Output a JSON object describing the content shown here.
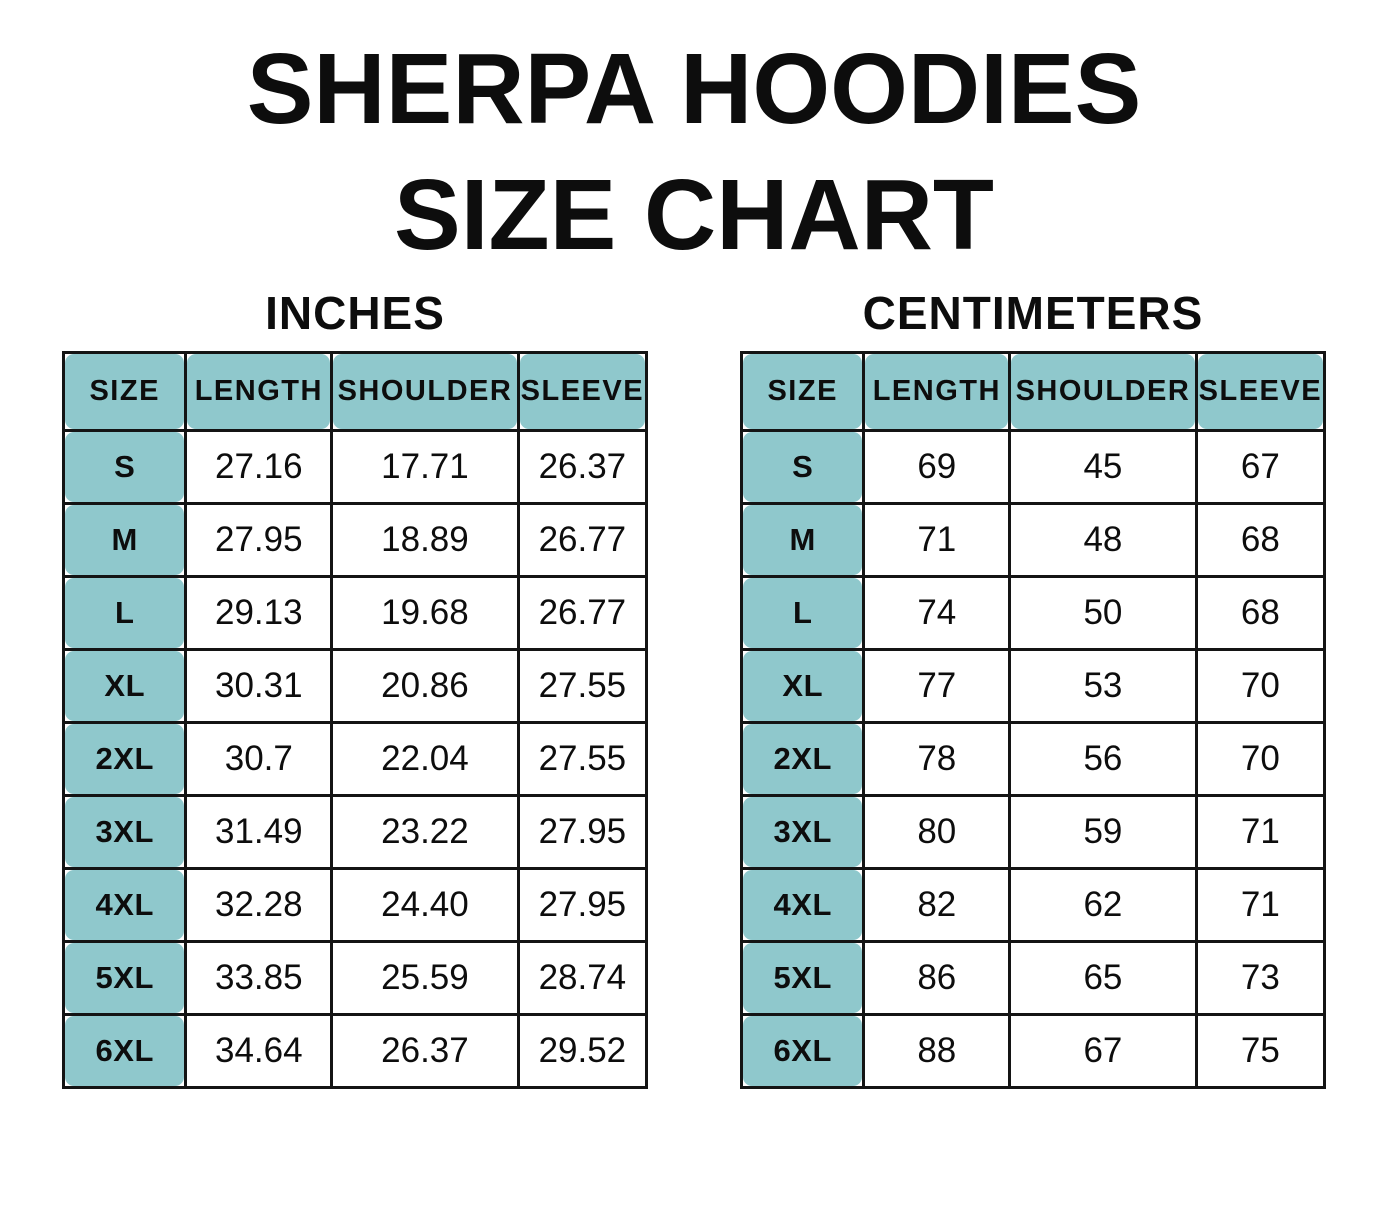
{
  "title": {
    "line1": "SHERPA HOODIES",
    "line2": "SIZE CHART"
  },
  "colors": {
    "header_fill": "#8FC8CC",
    "border": "#141414",
    "text": "#0D0D0D",
    "background": "#FFFFFF"
  },
  "tables": [
    {
      "id": "inches",
      "subtitle": "INCHES",
      "columns": [
        "SIZE",
        "LENGTH",
        "SHOULDER",
        "SLEEVE"
      ],
      "rows": [
        {
          "size": "S",
          "values": [
            "27.16",
            "17.71",
            "26.37"
          ]
        },
        {
          "size": "M",
          "values": [
            "27.95",
            "18.89",
            "26.77"
          ]
        },
        {
          "size": "L",
          "values": [
            "29.13",
            "19.68",
            "26.77"
          ]
        },
        {
          "size": "XL",
          "values": [
            "30.31",
            "20.86",
            "27.55"
          ]
        },
        {
          "size": "2XL",
          "values": [
            "30.7",
            "22.04",
            "27.55"
          ]
        },
        {
          "size": "3XL",
          "values": [
            "31.49",
            "23.22",
            "27.95"
          ]
        },
        {
          "size": "4XL",
          "values": [
            "32.28",
            "24.40",
            "27.95"
          ]
        },
        {
          "size": "5XL",
          "values": [
            "33.85",
            "25.59",
            "28.74"
          ]
        },
        {
          "size": "6XL",
          "values": [
            "34.64",
            "26.37",
            "29.52"
          ]
        }
      ]
    },
    {
      "id": "centimeters",
      "subtitle": "CENTIMETERS",
      "columns": [
        "SIZE",
        "LENGTH",
        "SHOULDER",
        "SLEEVE"
      ],
      "rows": [
        {
          "size": "S",
          "values": [
            "69",
            "45",
            "67"
          ]
        },
        {
          "size": "M",
          "values": [
            "71",
            "48",
            "68"
          ]
        },
        {
          "size": "L",
          "values": [
            "74",
            "50",
            "68"
          ]
        },
        {
          "size": "XL",
          "values": [
            "77",
            "53",
            "70"
          ]
        },
        {
          "size": "2XL",
          "values": [
            "78",
            "56",
            "70"
          ]
        },
        {
          "size": "3XL",
          "values": [
            "80",
            "59",
            "71"
          ]
        },
        {
          "size": "4XL",
          "values": [
            "82",
            "62",
            "71"
          ]
        },
        {
          "size": "5XL",
          "values": [
            "86",
            "65",
            "73"
          ]
        },
        {
          "size": "6XL",
          "values": [
            "88",
            "67",
            "75"
          ]
        }
      ]
    }
  ]
}
